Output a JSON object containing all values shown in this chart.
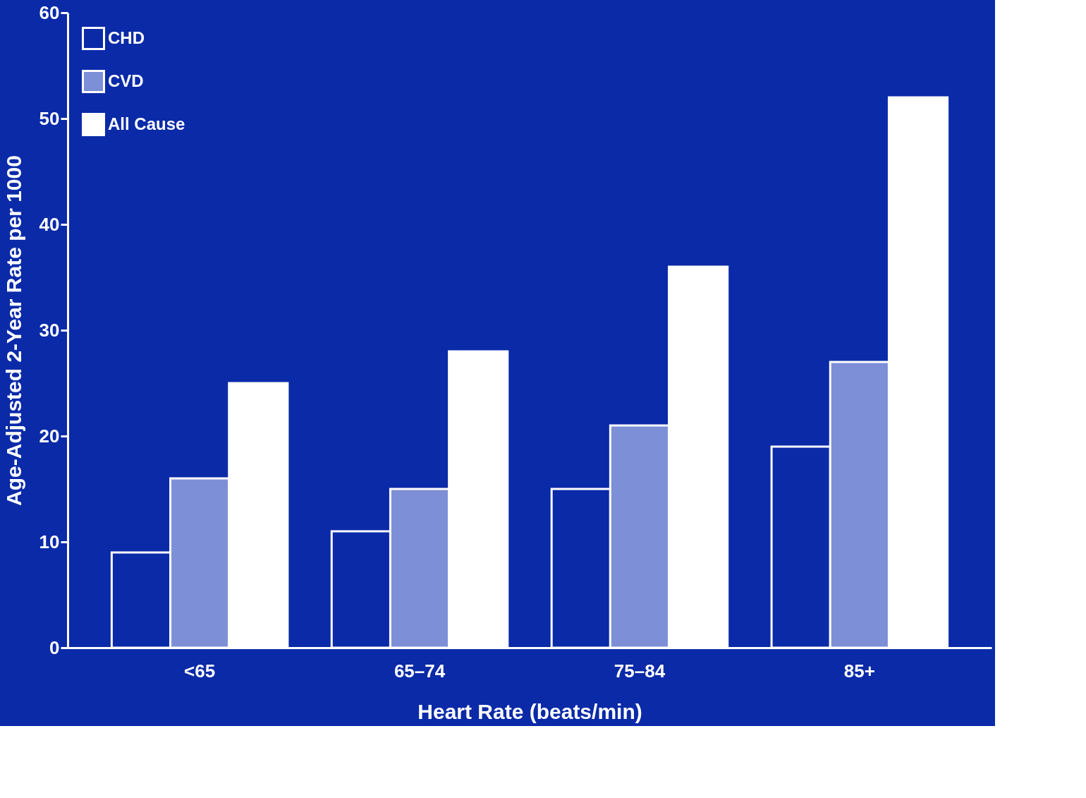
{
  "chart_data": {
    "type": "bar",
    "xlabel": "Heart Rate (beats/min)",
    "ylabel": "Age-Adjusted 2-Year Rate per 1000",
    "categories": [
      "<65",
      "65–74",
      "75–84",
      "85+"
    ],
    "series": [
      {
        "name": "CHD",
        "color": "#0a2aa8",
        "values": [
          9,
          11,
          15,
          19
        ]
      },
      {
        "name": "CVD",
        "color": "#7d8fd6",
        "values": [
          16,
          15,
          21,
          27
        ]
      },
      {
        "name": "All Cause",
        "color": "#ffffff",
        "values": [
          25,
          28,
          36,
          52
        ]
      }
    ],
    "ylim": [
      0,
      60
    ],
    "yticks": [
      0,
      10,
      20,
      30,
      40,
      50,
      60
    ],
    "grid": false,
    "legend": "top left"
  }
}
